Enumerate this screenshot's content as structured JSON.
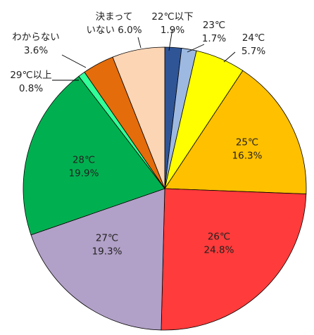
{
  "chart_data": {
    "type": "pie",
    "unit": "%",
    "slices": [
      {
        "label": "22℃以下",
        "value": 1.9,
        "value_label": "1.9%",
        "color": "#2F5597"
      },
      {
        "label": "23℃",
        "value": 1.7,
        "value_label": "1.7%",
        "color": "#9DB9E2"
      },
      {
        "label": "24℃",
        "value": 5.7,
        "value_label": "5.7%",
        "color": "#FFFF00"
      },
      {
        "label": "25℃",
        "value": 16.3,
        "value_label": "16.3%",
        "color": "#FFC000"
      },
      {
        "label": "26℃",
        "value": 24.8,
        "value_label": "24.8%",
        "color": "#FF3B3B"
      },
      {
        "label": "27℃",
        "value": 19.3,
        "value_label": "19.3%",
        "color": "#B1A0C7"
      },
      {
        "label": "28℃",
        "value": 19.9,
        "value_label": "19.9%",
        "color": "#00B050"
      },
      {
        "label": "29℃以上",
        "value": 0.8,
        "value_label": "0.8%",
        "color": "#33FF99"
      },
      {
        "label": "わからない",
        "value": 3.6,
        "value_label": "3.6%",
        "color": "#E46C0A"
      },
      {
        "label": "決まっていない",
        "label_lines": [
          "決まって",
          "いない"
        ],
        "value": 6.0,
        "value_label": "6.0%",
        "color": "#FCD5B5"
      }
    ]
  }
}
